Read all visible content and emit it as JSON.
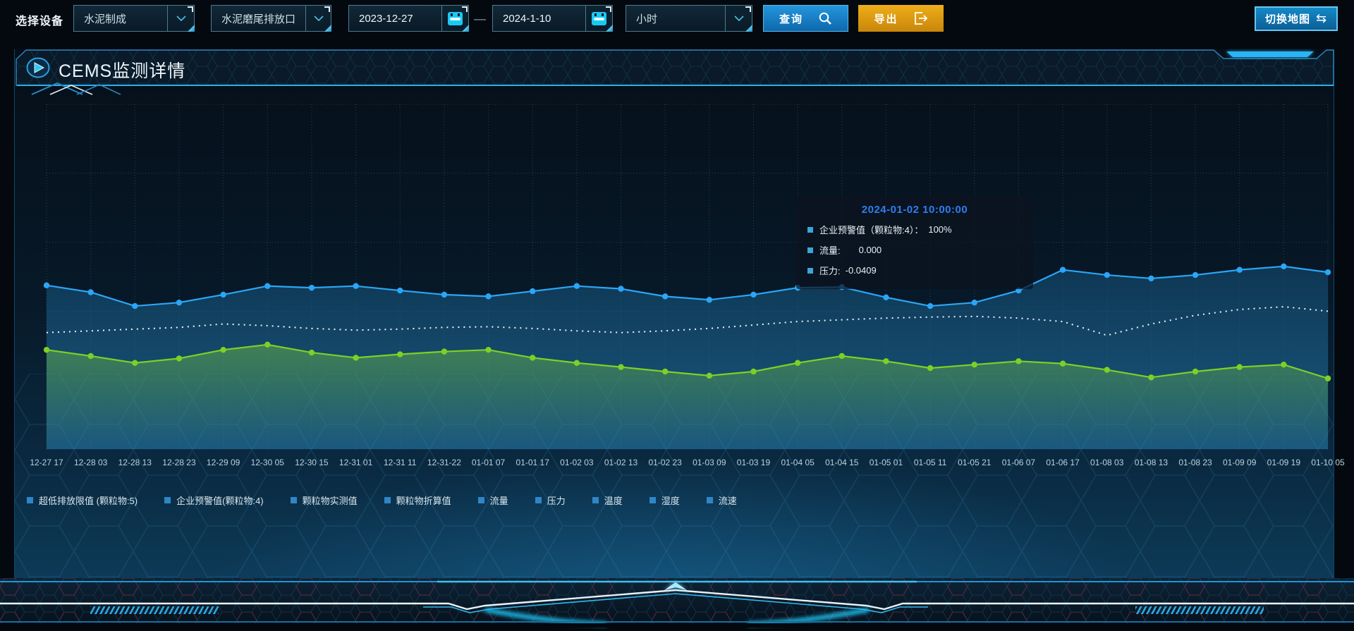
{
  "toolbar": {
    "device_label": "选择设备",
    "device_select": {
      "value": "水泥制成"
    },
    "port_select": {
      "value": "水泥磨尾排放口"
    },
    "date_start": {
      "value": "2023-12-27"
    },
    "range_separator": "—",
    "date_end": {
      "value": "2024-1-10"
    },
    "interval_select": {
      "value": "小时"
    },
    "query_button": "查询",
    "export_button": "导出",
    "switch_map_button": "切换地图",
    "switch_map_icon": "⇆"
  },
  "panel": {
    "title": "CEMS监测详情"
  },
  "tooltip": {
    "title": "2024-01-02 10:00:00",
    "title_color": "#2d7ff0",
    "marker_color": "#3ea4da",
    "rows": [
      {
        "label": "企业预警值（颗粒物:4）：",
        "value": "100%"
      },
      {
        "label": "流量:",
        "value": "0.000"
      },
      {
        "label": "压力:",
        "value": "-0.0409"
      }
    ]
  },
  "legend": {
    "marker_color": "#2e86c8",
    "items": [
      "超低排放限值 (颗粒物:5)",
      "企业预警值(颗粒物:4)",
      "颗粒物实测值",
      "颗粒物折算值",
      "流量",
      "压力",
      "温度",
      "湿度",
      "流速"
    ]
  },
  "chart_data": {
    "type": "line",
    "title": "",
    "xlabel": "",
    "ylabel": "",
    "ylim": [
      0,
      100
    ],
    "grid": true,
    "legend_position": "bottom",
    "categories": [
      "12-27 17",
      "12-28 03",
      "12-28 13",
      "12-28 23",
      "12-29 09",
      "12-30 05",
      "12-30 15",
      "12-31 01",
      "12-31 11",
      "12-31-22",
      "01-01 07",
      "01-01 17",
      "01-02 03",
      "01-02 13",
      "01-02 23",
      "01-03 09",
      "01-03 19",
      "01-04 05",
      "01-04 15",
      "01-05 01",
      "01-05 11",
      "01-05 21",
      "01-06 07",
      "01-06 17",
      "01-08 03",
      "01-08 13",
      "01-08 23",
      "01-09 09",
      "01-09 19",
      "01-10 05"
    ],
    "series": [
      {
        "name": "企业预警值(颗粒物:4)",
        "color": "#2ba6f7",
        "line": "solid",
        "symbols": true,
        "area": "blue",
        "values": [
          47.5,
          45.5,
          41.5,
          42.5,
          44.8,
          47.3,
          46.8,
          47.3,
          46,
          44.8,
          44.3,
          45.8,
          47.3,
          46.5,
          44.3,
          43.3,
          44.8,
          46.8,
          47,
          44,
          41.5,
          42.5,
          46,
          52,
          50.5,
          49.5,
          50.5,
          52,
          53,
          51.3
        ]
      },
      {
        "name": "流量",
        "color": "#eef6f8",
        "line": "dotted",
        "symbols": false,
        "area": "none",
        "values": [
          33.8,
          34.3,
          34.8,
          35.3,
          36.3,
          35.8,
          35,
          34.5,
          34.8,
          35.3,
          35.5,
          35,
          34.3,
          33.8,
          34.3,
          35,
          36,
          37,
          37.5,
          38,
          38.3,
          38.5,
          38,
          37,
          33,
          36.3,
          38.8,
          40.5,
          41.3,
          40
        ]
      },
      {
        "name": "压力",
        "color": "#7fd024",
        "line": "solid",
        "symbols": true,
        "area": "green",
        "values": [
          28.8,
          27,
          25,
          26.3,
          28.8,
          30.3,
          28,
          26.5,
          27.5,
          28.3,
          28.8,
          26.5,
          25,
          23.8,
          22.5,
          21.3,
          22.5,
          25,
          27,
          25.5,
          23.5,
          24.5,
          25.5,
          24.8,
          23,
          20.8,
          22.5,
          23.8,
          24.5,
          20.5
        ]
      }
    ]
  }
}
